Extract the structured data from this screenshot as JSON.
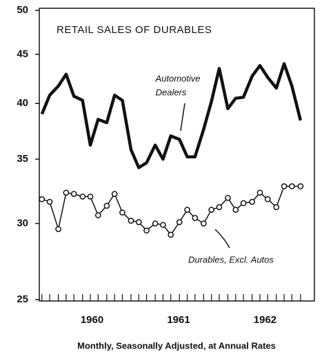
{
  "chart_data": {
    "type": "line",
    "title": "RETAIL SALES OF DURABLES",
    "x_label": "Monthly, Seasonally Adjusted, at Annual Rates",
    "annotations": [
      "Automotive",
      "Dealers",
      "Durables, Excl. Autos"
    ],
    "x": [
      1959.92,
      1960.01,
      1960.11,
      1960.2,
      1960.29,
      1960.39,
      1960.48,
      1960.57,
      1960.67,
      1960.76,
      1960.85,
      1960.95,
      1961.04,
      1961.13,
      1961.23,
      1961.32,
      1961.41,
      1961.51,
      1961.6,
      1961.69,
      1961.79,
      1961.88,
      1961.97,
      1962.07,
      1962.16,
      1962.25,
      1962.35,
      1962.44,
      1962.53,
      1962.63,
      1962.72,
      1962.81,
      1962.91
    ],
    "series": [
      {
        "color": "#111111",
        "marker": "none",
        "values": [
          39.0,
          40.8,
          41.7,
          42.9,
          40.7,
          40.3,
          36.2,
          38.5,
          38.2,
          40.8,
          40.3,
          35.8,
          34.3,
          34.7,
          36.2,
          35.0,
          37.0,
          36.7,
          35.2,
          35.2,
          37.6,
          40.2,
          43.5,
          39.5,
          40.5,
          40.6,
          42.7,
          43.8,
          42.6,
          41.5,
          44.0,
          41.7,
          38.4
        ]
      },
      {
        "color": "#111111",
        "marker": "circle",
        "values": [
          31.8,
          31.6,
          29.6,
          32.3,
          32.2,
          32.0,
          32.0,
          30.6,
          31.3,
          32.2,
          30.8,
          30.2,
          30.1,
          29.5,
          30.0,
          29.9,
          29.2,
          30.1,
          31.0,
          30.4,
          30.0,
          31.0,
          31.2,
          31.9,
          31.0,
          31.5,
          31.6,
          32.3,
          31.8,
          31.2,
          32.8,
          32.8,
          32.8
        ]
      }
    ],
    "xlim": [
      1959.89,
      1963.07
    ],
    "xticks": [
      {
        "value": 1960.5,
        "label": "1960"
      },
      {
        "value": 1961.5,
        "label": "1961"
      },
      {
        "value": 1962.5,
        "label": "1962"
      }
    ],
    "ylim": [
      25,
      50
    ],
    "yticks": [
      25,
      30,
      35,
      40,
      45,
      50
    ],
    "log_y": true,
    "grid": false
  }
}
